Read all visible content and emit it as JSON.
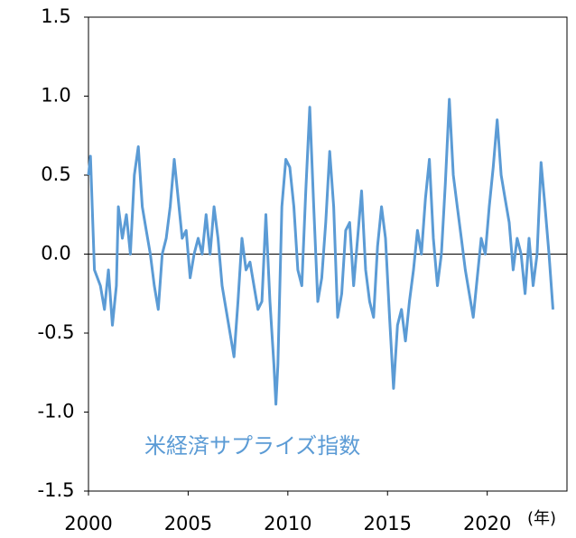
{
  "chart_data": {
    "type": "line",
    "annotation": "米経済サプライズ指数",
    "x_unit_label": "(年)",
    "xlim": [
      2000,
      2024
    ],
    "xticks": [
      2000,
      2005,
      2010,
      2015,
      2020
    ],
    "ylim": [
      -1.5,
      1.5
    ],
    "yticks": [
      1.5,
      {
        "value": 1,
        "label": "1.0"
      },
      0.5,
      {
        "value": 0,
        "label": "0.0"
      },
      -0.5,
      {
        "value": -1,
        "label": "-1.0"
      },
      -1.5
    ],
    "zero_line": true,
    "series": [
      {
        "color": "#5b9bd5",
        "x": [
          2000.0,
          2000.1,
          2000.3,
          2000.6,
          2000.8,
          2001.0,
          2001.2,
          2001.4,
          2001.5,
          2001.7,
          2001.9,
          2002.1,
          2002.3,
          2002.5,
          2002.7,
          2002.9,
          2003.1,
          2003.3,
          2003.5,
          2003.7,
          2003.9,
          2004.1,
          2004.3,
          2004.5,
          2004.7,
          2004.9,
          2005.1,
          2005.3,
          2005.5,
          2005.7,
          2005.9,
          2006.1,
          2006.3,
          2006.5,
          2006.7,
          2006.9,
          2007.1,
          2007.3,
          2007.5,
          2007.7,
          2007.9,
          2008.1,
          2008.3,
          2008.5,
          2008.7,
          2008.9,
          2009.1,
          2009.3,
          2009.4,
          2009.5,
          2009.7,
          2009.9,
          2010.1,
          2010.3,
          2010.5,
          2010.7,
          2010.9,
          2011.1,
          2011.3,
          2011.5,
          2011.7,
          2011.9,
          2012.1,
          2012.3,
          2012.5,
          2012.7,
          2012.9,
          2013.1,
          2013.3,
          2013.5,
          2013.7,
          2013.9,
          2014.1,
          2014.3,
          2014.5,
          2014.7,
          2014.9,
          2015.1,
          2015.3,
          2015.5,
          2015.7,
          2015.9,
          2016.1,
          2016.3,
          2016.5,
          2016.7,
          2016.9,
          2017.1,
          2017.3,
          2017.5,
          2017.7,
          2017.9,
          2018.1,
          2018.3,
          2018.5,
          2018.7,
          2018.9,
          2019.1,
          2019.3,
          2019.5,
          2019.7,
          2019.9,
          2020.1,
          2020.3,
          2020.5,
          2020.7,
          2020.9,
          2021.1,
          2021.3,
          2021.5,
          2021.7,
          2021.9,
          2022.1,
          2022.3,
          2022.5,
          2022.7,
          2022.9,
          2023.1,
          2023.3
        ],
        "values": [
          0.5,
          0.62,
          -0.1,
          -0.2,
          -0.35,
          -0.1,
          -0.45,
          -0.2,
          0.3,
          0.1,
          0.25,
          0.0,
          0.5,
          0.68,
          0.3,
          0.15,
          0.0,
          -0.2,
          -0.35,
          0.0,
          0.1,
          0.3,
          0.6,
          0.35,
          0.1,
          0.15,
          -0.15,
          0.0,
          0.1,
          0.0,
          0.25,
          0.0,
          0.3,
          0.1,
          -0.2,
          -0.35,
          -0.5,
          -0.65,
          -0.3,
          0.1,
          -0.1,
          -0.05,
          -0.2,
          -0.35,
          -0.3,
          0.25,
          -0.3,
          -0.7,
          -0.95,
          -0.7,
          0.3,
          0.6,
          0.55,
          0.3,
          -0.1,
          -0.2,
          0.4,
          0.93,
          0.3,
          -0.3,
          -0.15,
          0.2,
          0.65,
          0.3,
          -0.4,
          -0.25,
          0.15,
          0.2,
          -0.2,
          0.1,
          0.4,
          -0.1,
          -0.3,
          -0.4,
          0.05,
          0.3,
          0.1,
          -0.4,
          -0.85,
          -0.45,
          -0.35,
          -0.55,
          -0.3,
          -0.1,
          0.15,
          0.0,
          0.35,
          0.6,
          0.1,
          -0.2,
          0.0,
          0.45,
          0.98,
          0.5,
          0.3,
          0.1,
          -0.1,
          -0.25,
          -0.4,
          -0.15,
          0.1,
          0.0,
          0.3,
          0.55,
          0.85,
          0.5,
          0.35,
          0.2,
          -0.1,
          0.1,
          0.0,
          -0.25,
          0.1,
          -0.2,
          0.0,
          0.58,
          0.3,
          0.0,
          -0.35
        ]
      }
    ]
  }
}
